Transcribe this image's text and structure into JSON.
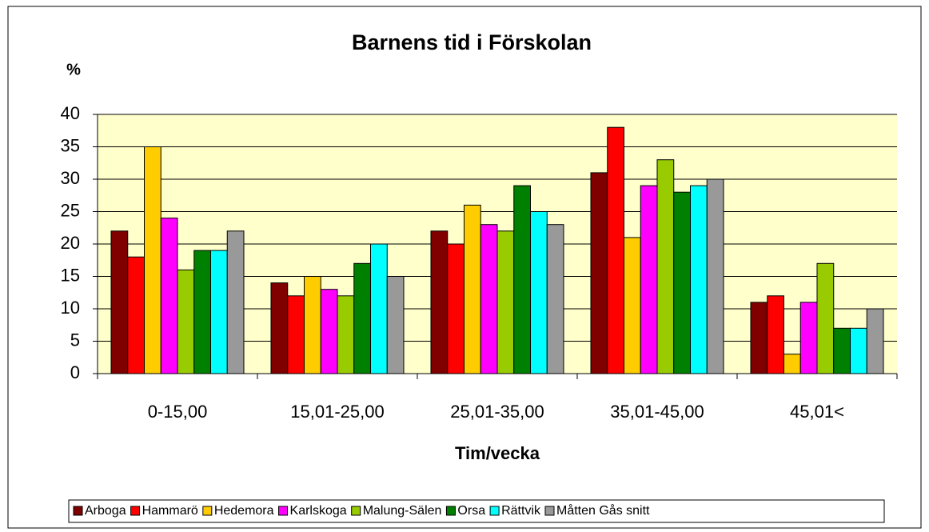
{
  "chart_data": {
    "type": "bar",
    "title": "Barnens tid i Förskolan",
    "y_label": "%",
    "x_label": "Tim/vecka",
    "categories": [
      "0-15,00",
      "15,01-25,00",
      "25,01-35,00",
      "35,01-45,00",
      "45,01<"
    ],
    "series": [
      {
        "name": "Arboga",
        "color": "#800000",
        "values": [
          22,
          14,
          22,
          31,
          11
        ]
      },
      {
        "name": "Hammarö",
        "color": "#ff0000",
        "values": [
          18,
          12,
          20,
          38,
          12
        ]
      },
      {
        "name": "Hedemora",
        "color": "#ffcc00",
        "values": [
          35,
          15,
          26,
          21,
          3
        ]
      },
      {
        "name": "Karlskoga",
        "color": "#ff00ff",
        "values": [
          24,
          13,
          23,
          29,
          11
        ]
      },
      {
        "name": "Malung-Sälen",
        "color": "#99cc00",
        "values": [
          16,
          12,
          22,
          33,
          17
        ]
      },
      {
        "name": "Orsa",
        "color": "#008000",
        "values": [
          19,
          17,
          29,
          28,
          7
        ]
      },
      {
        "name": "Rättvik",
        "color": "#00ffff",
        "values": [
          19,
          20,
          25,
          29,
          7
        ]
      },
      {
        "name": "Måtten Gås snitt",
        "color": "#999999",
        "values": [
          22,
          15,
          23,
          30,
          10
        ]
      }
    ],
    "ylim": [
      0,
      40
    ],
    "yticks": [
      0,
      5,
      10,
      15,
      20,
      25,
      30,
      35,
      40
    ],
    "grid": true,
    "legend": "bottom"
  }
}
